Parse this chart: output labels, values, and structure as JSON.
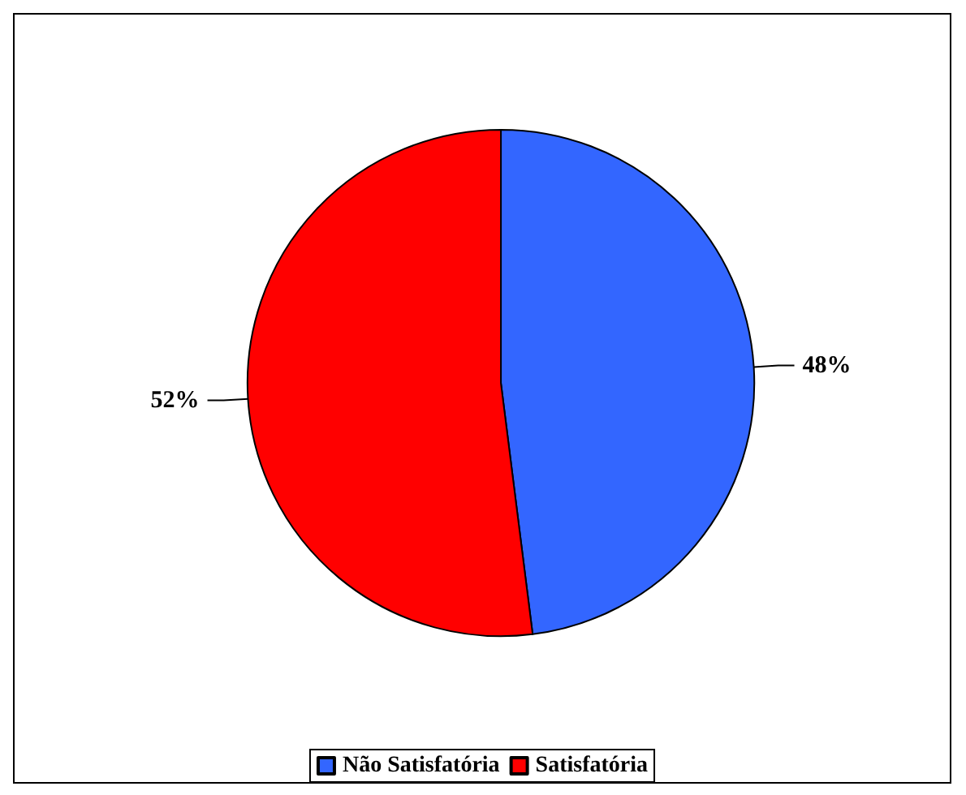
{
  "chart_data": {
    "type": "pie",
    "categories": [
      "Não Satisfatória",
      "Satisfatória"
    ],
    "values": [
      48,
      52
    ],
    "colors": [
      "#3366ff",
      "#ff0000"
    ],
    "value_labels": [
      "48%",
      "52%"
    ],
    "legend": "bottom"
  }
}
